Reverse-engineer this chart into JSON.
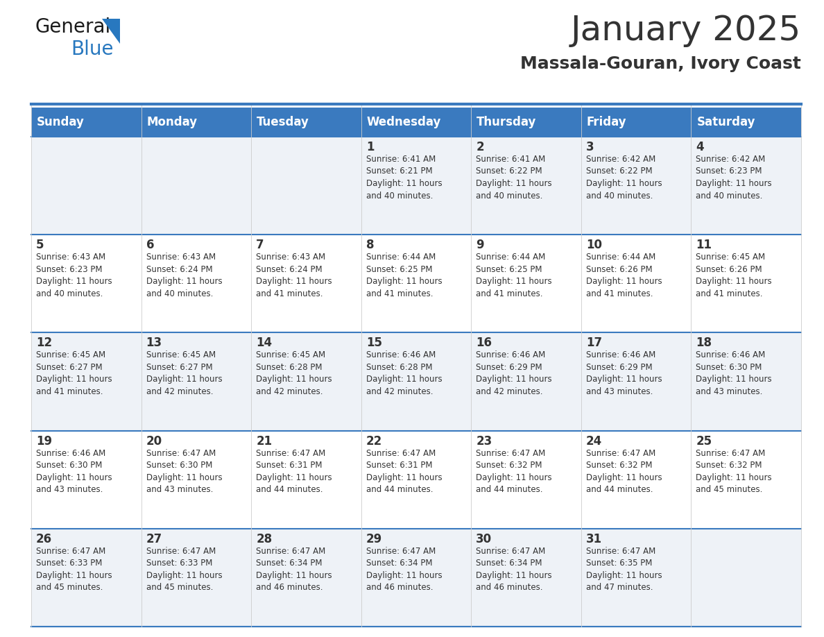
{
  "title": "January 2025",
  "subtitle": "Massala-Gouran, Ivory Coast",
  "header_bg": "#3a7abf",
  "header_text_color": "#ffffff",
  "cell_bg_odd": "#eef2f7",
  "cell_bg_even": "#ffffff",
  "border_color": "#3a7abf",
  "text_color": "#333333",
  "days_of_week": [
    "Sunday",
    "Monday",
    "Tuesday",
    "Wednesday",
    "Thursday",
    "Friday",
    "Saturday"
  ],
  "calendar_data": [
    [
      {
        "day": "",
        "info": ""
      },
      {
        "day": "",
        "info": ""
      },
      {
        "day": "",
        "info": ""
      },
      {
        "day": "1",
        "info": "Sunrise: 6:41 AM\nSunset: 6:21 PM\nDaylight: 11 hours\nand 40 minutes."
      },
      {
        "day": "2",
        "info": "Sunrise: 6:41 AM\nSunset: 6:22 PM\nDaylight: 11 hours\nand 40 minutes."
      },
      {
        "day": "3",
        "info": "Sunrise: 6:42 AM\nSunset: 6:22 PM\nDaylight: 11 hours\nand 40 minutes."
      },
      {
        "day": "4",
        "info": "Sunrise: 6:42 AM\nSunset: 6:23 PM\nDaylight: 11 hours\nand 40 minutes."
      }
    ],
    [
      {
        "day": "5",
        "info": "Sunrise: 6:43 AM\nSunset: 6:23 PM\nDaylight: 11 hours\nand 40 minutes."
      },
      {
        "day": "6",
        "info": "Sunrise: 6:43 AM\nSunset: 6:24 PM\nDaylight: 11 hours\nand 40 minutes."
      },
      {
        "day": "7",
        "info": "Sunrise: 6:43 AM\nSunset: 6:24 PM\nDaylight: 11 hours\nand 41 minutes."
      },
      {
        "day": "8",
        "info": "Sunrise: 6:44 AM\nSunset: 6:25 PM\nDaylight: 11 hours\nand 41 minutes."
      },
      {
        "day": "9",
        "info": "Sunrise: 6:44 AM\nSunset: 6:25 PM\nDaylight: 11 hours\nand 41 minutes."
      },
      {
        "day": "10",
        "info": "Sunrise: 6:44 AM\nSunset: 6:26 PM\nDaylight: 11 hours\nand 41 minutes."
      },
      {
        "day": "11",
        "info": "Sunrise: 6:45 AM\nSunset: 6:26 PM\nDaylight: 11 hours\nand 41 minutes."
      }
    ],
    [
      {
        "day": "12",
        "info": "Sunrise: 6:45 AM\nSunset: 6:27 PM\nDaylight: 11 hours\nand 41 minutes."
      },
      {
        "day": "13",
        "info": "Sunrise: 6:45 AM\nSunset: 6:27 PM\nDaylight: 11 hours\nand 42 minutes."
      },
      {
        "day": "14",
        "info": "Sunrise: 6:45 AM\nSunset: 6:28 PM\nDaylight: 11 hours\nand 42 minutes."
      },
      {
        "day": "15",
        "info": "Sunrise: 6:46 AM\nSunset: 6:28 PM\nDaylight: 11 hours\nand 42 minutes."
      },
      {
        "day": "16",
        "info": "Sunrise: 6:46 AM\nSunset: 6:29 PM\nDaylight: 11 hours\nand 42 minutes."
      },
      {
        "day": "17",
        "info": "Sunrise: 6:46 AM\nSunset: 6:29 PM\nDaylight: 11 hours\nand 43 minutes."
      },
      {
        "day": "18",
        "info": "Sunrise: 6:46 AM\nSunset: 6:30 PM\nDaylight: 11 hours\nand 43 minutes."
      }
    ],
    [
      {
        "day": "19",
        "info": "Sunrise: 6:46 AM\nSunset: 6:30 PM\nDaylight: 11 hours\nand 43 minutes."
      },
      {
        "day": "20",
        "info": "Sunrise: 6:47 AM\nSunset: 6:30 PM\nDaylight: 11 hours\nand 43 minutes."
      },
      {
        "day": "21",
        "info": "Sunrise: 6:47 AM\nSunset: 6:31 PM\nDaylight: 11 hours\nand 44 minutes."
      },
      {
        "day": "22",
        "info": "Sunrise: 6:47 AM\nSunset: 6:31 PM\nDaylight: 11 hours\nand 44 minutes."
      },
      {
        "day": "23",
        "info": "Sunrise: 6:47 AM\nSunset: 6:32 PM\nDaylight: 11 hours\nand 44 minutes."
      },
      {
        "day": "24",
        "info": "Sunrise: 6:47 AM\nSunset: 6:32 PM\nDaylight: 11 hours\nand 44 minutes."
      },
      {
        "day": "25",
        "info": "Sunrise: 6:47 AM\nSunset: 6:32 PM\nDaylight: 11 hours\nand 45 minutes."
      }
    ],
    [
      {
        "day": "26",
        "info": "Sunrise: 6:47 AM\nSunset: 6:33 PM\nDaylight: 11 hours\nand 45 minutes."
      },
      {
        "day": "27",
        "info": "Sunrise: 6:47 AM\nSunset: 6:33 PM\nDaylight: 11 hours\nand 45 minutes."
      },
      {
        "day": "28",
        "info": "Sunrise: 6:47 AM\nSunset: 6:34 PM\nDaylight: 11 hours\nand 46 minutes."
      },
      {
        "day": "29",
        "info": "Sunrise: 6:47 AM\nSunset: 6:34 PM\nDaylight: 11 hours\nand 46 minutes."
      },
      {
        "day": "30",
        "info": "Sunrise: 6:47 AM\nSunset: 6:34 PM\nDaylight: 11 hours\nand 46 minutes."
      },
      {
        "day": "31",
        "info": "Sunrise: 6:47 AM\nSunset: 6:35 PM\nDaylight: 11 hours\nand 47 minutes."
      },
      {
        "day": "",
        "info": ""
      }
    ]
  ],
  "logo_general_color": "#1a1a1a",
  "logo_blue_color": "#2878bf",
  "logo_triangle_color": "#2878bf",
  "title_fontsize": 36,
  "subtitle_fontsize": 18,
  "header_fontsize": 12,
  "day_number_fontsize": 12,
  "info_fontsize": 8.5
}
